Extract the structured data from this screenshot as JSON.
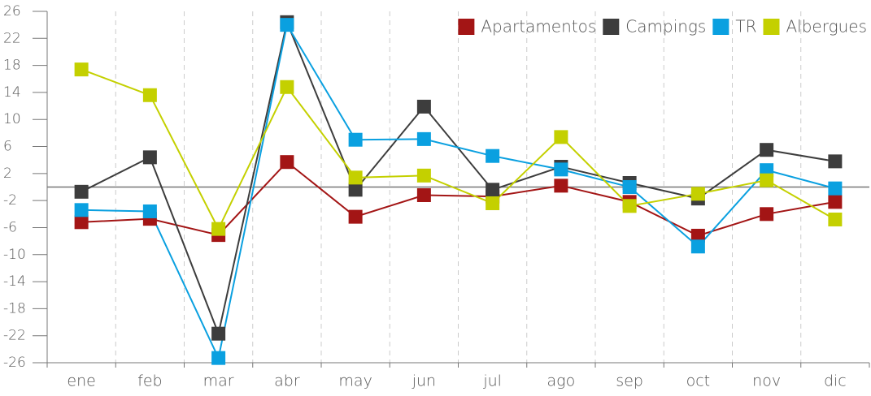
{
  "chart_data": {
    "type": "line",
    "categories": [
      "ene",
      "feb",
      "mar",
      "abr",
      "may",
      "jun",
      "jul",
      "ago",
      "sep",
      "oct",
      "nov",
      "dic"
    ],
    "series": [
      {
        "name": "Apartamentos",
        "color": "#a31515",
        "values": [
          -5.2,
          -4.7,
          -7.1,
          3.7,
          -4.4,
          -1.2,
          -1.4,
          0.2,
          -2.2,
          -7.2,
          -4.0,
          -2.2
        ]
      },
      {
        "name": "Campings",
        "color": "#3d3d3d",
        "values": [
          -0.7,
          4.4,
          -21.7,
          24.4,
          -0.4,
          11.9,
          -0.4,
          3.0,
          0.6,
          -1.7,
          5.5,
          3.8
        ]
      },
      {
        "name": "TR",
        "color": "#0aa0e0",
        "values": [
          -3.4,
          -3.6,
          -25.3,
          24.0,
          7.0,
          7.1,
          4.6,
          2.6,
          0.0,
          -8.8,
          2.5,
          -0.2
        ]
      },
      {
        "name": "Albergues",
        "color": "#c4d000",
        "values": [
          17.4,
          13.6,
          -6.2,
          14.8,
          1.4,
          1.7,
          -2.4,
          7.4,
          -2.8,
          -1.0,
          1.0,
          -4.8
        ]
      }
    ],
    "ylim": [
      -26,
      26
    ],
    "yticks": [
      -26,
      -22,
      -18,
      -14,
      -10,
      -6,
      -2,
      2,
      6,
      10,
      14,
      18,
      22,
      26
    ],
    "legend": "top-right"
  }
}
